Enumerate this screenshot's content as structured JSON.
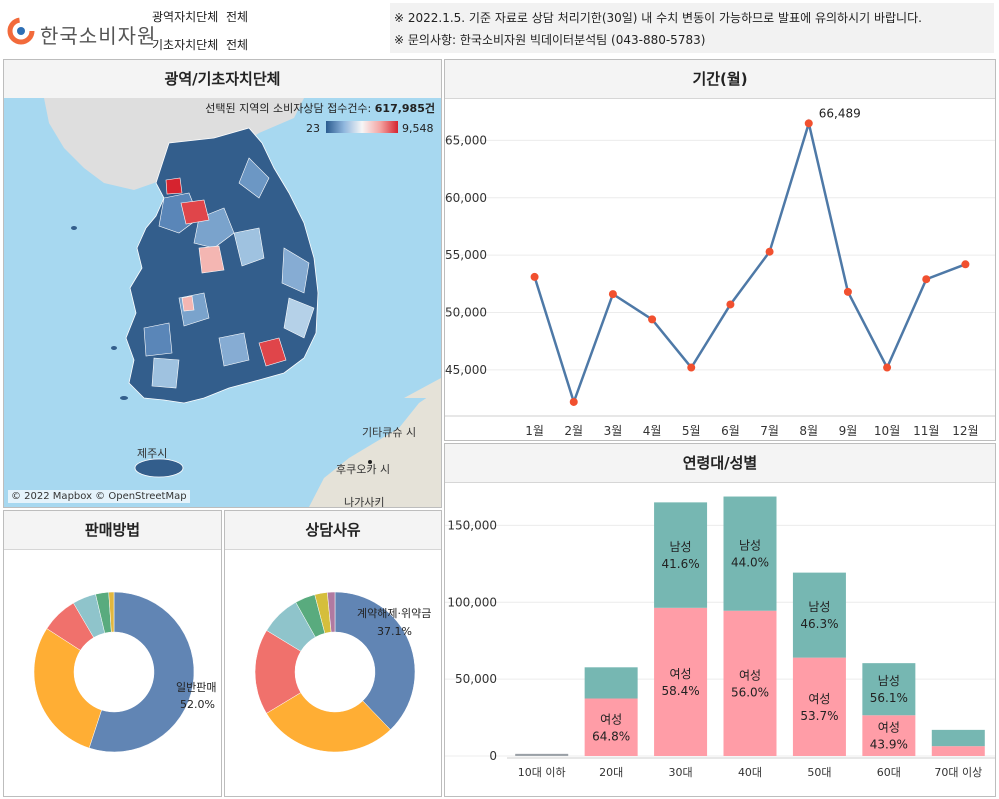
{
  "header": {
    "logo_text": "한국소비자원",
    "filters": [
      {
        "label": "광역자치단체",
        "value": "전체"
      },
      {
        "label": "기초자치단체",
        "value": "전체"
      }
    ],
    "notices": [
      "※ 2022.1.5. 기준 자료로 상담 처리기한(30일) 내 수치 변동이 가능하므로 발표에 유의하시기 바랍니다.",
      "※ 문의사항: 한국소비자원 빅데이터분석팀 (043-880-5783)"
    ]
  },
  "map_panel": {
    "title": "광역/기초자치단체",
    "summary_label": "선택된 지역의 소비자상담 접수건수:",
    "summary_value": "617,985건",
    "legend_min": "23",
    "legend_max": "9,548",
    "attribution": "© 2022 Mapbox © OpenStreetMap",
    "place_labels": [
      "제주시",
      "후쿠오카 시",
      "기타큐슈 시",
      "나가사키"
    ],
    "colors": {
      "sea": "#a7d8f0",
      "land_low": "#335e8c",
      "land_high": "#d6232f"
    }
  },
  "month_panel": {
    "title": "기간(월)",
    "chart_data": {
      "type": "line",
      "categories": [
        "1월",
        "2월",
        "3월",
        "4월",
        "5월",
        "6월",
        "7월",
        "8월",
        "9월",
        "10월",
        "11월",
        "12월"
      ],
      "values": [
        53100,
        42200,
        51600,
        49400,
        45200,
        50700,
        55300,
        66489,
        51800,
        45200,
        52900,
        54200
      ],
      "peak_label": "66,489",
      "y_ticks": [
        45000,
        50000,
        55000,
        60000,
        65000
      ],
      "y_tick_labels": [
        "45,000",
        "50,000",
        "55,000",
        "60,000",
        "65,000"
      ],
      "ylim": [
        41500,
        68000
      ],
      "line_color": "#4e79a7",
      "marker_color": "#f1502f"
    }
  },
  "age_panel": {
    "title": "연령대/성별",
    "chart_data": {
      "type": "bar",
      "categories": [
        "10대 이하",
        "20대",
        "30대",
        "40대",
        "50대",
        "60대",
        "70대 이상"
      ],
      "series": [
        {
          "name": "여성",
          "values": [
            600,
            37400,
            96400,
            94500,
            64000,
            26500,
            6400
          ],
          "pct_labels": [
            "",
            "64.8%",
            "58.4%",
            "56.0%",
            "53.7%",
            "43.9%",
            ""
          ]
        },
        {
          "name": "남성",
          "values": [
            800,
            20300,
            68600,
            74300,
            55300,
            33900,
            10600
          ],
          "pct_labels": [
            "",
            "",
            "41.6%",
            "44.0%",
            "46.3%",
            "56.1%",
            ""
          ]
        }
      ],
      "y_ticks": [
        0,
        50000,
        100000,
        150000
      ],
      "y_tick_labels": [
        "0",
        "50,000",
        "100,000",
        "150,000"
      ],
      "ylim": [
        0,
        175000
      ],
      "colors": {
        "female": "#ff9da7",
        "male": "#76b7b2",
        "female_low": "#9aa0a6"
      }
    }
  },
  "sales_panel": {
    "title": "판매방법",
    "chart_data": {
      "type": "pie",
      "labels": [
        "일반판매",
        "",
        "",
        "",
        "",
        ""
      ],
      "values": [
        52.0,
        27.5,
        7.0,
        4.5,
        2.5,
        1.0
      ],
      "colors": [
        "#6185b4",
        "#ffae34",
        "#f0716c",
        "#8fc4cb",
        "#59ab7e",
        "#e2b73e"
      ],
      "shown_label": "일반판매",
      "shown_pct": "52.0%"
    }
  },
  "reason_panel": {
    "title": "상담사유",
    "chart_data": {
      "type": "pie",
      "labels": [
        "계약해제·위약금",
        "",
        "",
        "",
        "",
        "",
        ""
      ],
      "values": [
        37.1,
        28.0,
        17.0,
        8.0,
        4.0,
        2.5,
        1.5
      ],
      "colors": [
        "#6185b4",
        "#ffae34",
        "#f0716c",
        "#8fc4cb",
        "#59ab7e",
        "#d5be3c",
        "#b07aa1"
      ],
      "shown_label": "계약해제·위약금",
      "shown_pct": "37.1%"
    }
  }
}
